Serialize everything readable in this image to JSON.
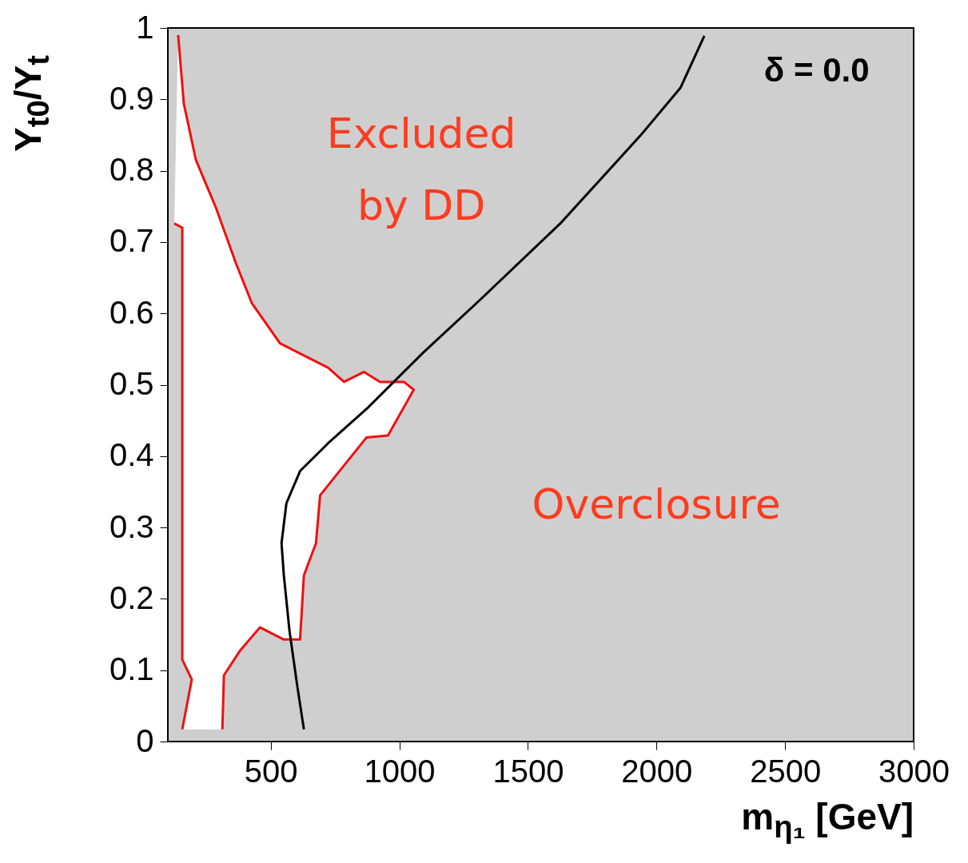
{
  "chart_data": {
    "type": "line",
    "xlabel": "m$_{η₁}$ [GeV]",
    "ylabel": "Y$_{t0}$/Y$_{t}$",
    "xlim": [
      100,
      3000
    ],
    "ylim": [
      0,
      1
    ],
    "xticks": [
      500,
      1000,
      1500,
      2000,
      2500,
      3000
    ],
    "yticks": [
      0,
      0.1,
      0.2,
      0.3,
      0.4,
      0.5,
      0.6,
      0.7,
      0.8,
      0.9,
      1
    ],
    "marker": "none",
    "line_style": "solid",
    "grid": false,
    "series": [
      {
        "color": "#ee1111",
        "x": [
          140,
          162,
          209,
          287,
          365,
          427,
          536,
          629,
          723,
          785,
          863,
          925,
          1018,
          1056,
          956,
          872,
          692,
          676,
          629,
          614,
          551,
          458,
          380,
          318,
          312
        ],
        "values": [
          0.99,
          0.894,
          0.815,
          0.748,
          0.67,
          0.614,
          0.558,
          0.541,
          0.524,
          0.504,
          0.518,
          0.504,
          0.504,
          0.493,
          0.429,
          0.426,
          0.345,
          0.278,
          0.233,
          0.143,
          0.143,
          0.16,
          0.127,
          0.093,
          0.017
        ]
      },
      {
        "color": "#ee1111",
        "x": [
          156,
          193,
          156,
          156,
          125
        ],
        "values": [
          0.017,
          0.087,
          0.115,
          0.72,
          0.726
        ]
      },
      {
        "color": "#000000",
        "x": [
          629,
          604,
          573,
          551,
          542,
          561,
          614,
          723,
          878,
          1096,
          1314,
          1626,
          1937,
          2093,
          2186
        ],
        "values": [
          0.017,
          0.076,
          0.155,
          0.233,
          0.278,
          0.334,
          0.379,
          0.418,
          0.468,
          0.546,
          0.619,
          0.726,
          0.849,
          0.916,
          0.989
        ]
      }
    ],
    "annotations": [
      "δ = 0.0",
      "Excluded\nby DD",
      "Overclosure"
    ]
  }
}
